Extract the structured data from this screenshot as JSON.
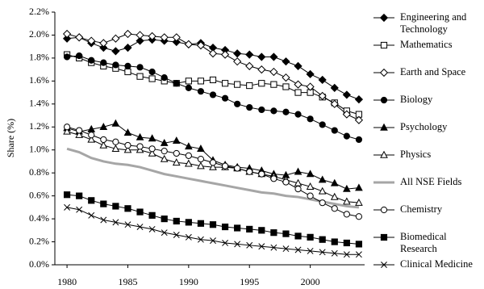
{
  "chart_data": {
    "type": "line",
    "y_label": "Share (%)",
    "x": [
      1980,
      1981,
      1982,
      1983,
      1984,
      1985,
      1986,
      1987,
      1988,
      1989,
      1990,
      1991,
      1992,
      1993,
      1994,
      1995,
      1996,
      1997,
      1998,
      1999,
      2000,
      2001,
      2002,
      2003,
      2004
    ],
    "xlim": [
      1979,
      2005
    ],
    "xticks": [
      1980,
      1985,
      1990,
      1995,
      2000
    ],
    "ylim": [
      0,
      2.2
    ],
    "yticks": [
      {
        "value": 0,
        "label": "0.0%"
      },
      {
        "value": 0.2,
        "label": "0.2%"
      },
      {
        "value": 0.4,
        "label": "0.4%"
      },
      {
        "value": 0.6,
        "label": "0.6%"
      },
      {
        "value": 0.8,
        "label": "0.8%"
      },
      {
        "value": 1.0,
        "label": "1.0%"
      },
      {
        "value": 1.2,
        "label": "1.2%"
      },
      {
        "value": 1.4,
        "label": "1.4%"
      },
      {
        "value": 1.6,
        "label": "1.6%"
      },
      {
        "value": 1.8,
        "label": "1.8%"
      },
      {
        "value": 2.0,
        "label": "2.0%"
      },
      {
        "value": 2.2,
        "label": "2.2%"
      }
    ],
    "grid": false,
    "legend": "right",
    "series": [
      {
        "name": "Engineering and Technology",
        "color": "#000000",
        "marker": "diamond-filled",
        "values": [
          1.97,
          1.98,
          1.93,
          1.89,
          1.86,
          1.89,
          1.95,
          1.96,
          1.95,
          1.94,
          1.92,
          1.93,
          1.89,
          1.87,
          1.84,
          1.83,
          1.81,
          1.81,
          1.77,
          1.73,
          1.66,
          1.61,
          1.54,
          1.48,
          1.44
        ]
      },
      {
        "name": "Mathematics",
        "color": "#000000",
        "marker": "square-open",
        "values": [
          1.83,
          1.8,
          1.76,
          1.73,
          1.71,
          1.68,
          1.64,
          1.62,
          1.6,
          1.58,
          1.6,
          1.6,
          1.61,
          1.58,
          1.57,
          1.56,
          1.58,
          1.57,
          1.55,
          1.5,
          1.5,
          1.46,
          1.41,
          1.34,
          1.31
        ]
      },
      {
        "name": "Earth and Space",
        "color": "#000000",
        "marker": "diamond-open",
        "values": [
          2.01,
          1.98,
          1.95,
          1.93,
          1.97,
          2.01,
          2.0,
          1.99,
          1.98,
          1.98,
          1.92,
          1.91,
          1.84,
          1.83,
          1.77,
          1.73,
          1.7,
          1.68,
          1.63,
          1.57,
          1.55,
          1.47,
          1.4,
          1.31,
          1.26
        ]
      },
      {
        "name": "Biology",
        "color": "#000000",
        "marker": "circle-filled",
        "values": [
          1.81,
          1.82,
          1.78,
          1.76,
          1.74,
          1.73,
          1.72,
          1.68,
          1.63,
          1.58,
          1.54,
          1.51,
          1.48,
          1.45,
          1.4,
          1.37,
          1.35,
          1.34,
          1.33,
          1.31,
          1.27,
          1.22,
          1.17,
          1.12,
          1.09
        ]
      },
      {
        "name": "Psychology",
        "color": "#000000",
        "marker": "triangle-filled",
        "values": [
          1.19,
          1.16,
          1.18,
          1.2,
          1.23,
          1.15,
          1.11,
          1.1,
          1.06,
          1.08,
          1.03,
          1.01,
          0.91,
          0.87,
          0.85,
          0.84,
          0.82,
          0.79,
          0.78,
          0.81,
          0.79,
          0.74,
          0.71,
          0.66,
          0.67
        ]
      },
      {
        "name": "Physics",
        "color": "#000000",
        "marker": "triangle-open",
        "values": [
          1.16,
          1.13,
          1.09,
          1.04,
          1.01,
          1.0,
          1.0,
          0.97,
          0.92,
          0.89,
          0.88,
          0.86,
          0.85,
          0.85,
          0.84,
          0.81,
          0.79,
          0.77,
          0.74,
          0.71,
          0.68,
          0.64,
          0.59,
          0.55,
          0.54
        ]
      },
      {
        "name": "All NSE Fields",
        "color": "#a6a6a6",
        "marker": "none",
        "values": [
          1.01,
          0.98,
          0.93,
          0.9,
          0.88,
          0.87,
          0.85,
          0.82,
          0.79,
          0.77,
          0.75,
          0.73,
          0.71,
          0.69,
          0.67,
          0.65,
          0.63,
          0.62,
          0.6,
          0.59,
          0.57,
          0.55,
          0.53,
          0.51,
          0.5
        ]
      },
      {
        "name": "Chemistry",
        "color": "#000000",
        "marker": "circle-open",
        "values": [
          1.2,
          1.17,
          1.13,
          1.09,
          1.07,
          1.04,
          1.03,
          1.01,
          0.99,
          0.97,
          0.95,
          0.92,
          0.89,
          0.86,
          0.84,
          0.81,
          0.79,
          0.75,
          0.72,
          0.66,
          0.6,
          0.54,
          0.49,
          0.44,
          0.42
        ]
      },
      {
        "name": "Biomedical Research",
        "color": "#000000",
        "marker": "square-filled",
        "values": [
          0.61,
          0.6,
          0.56,
          0.53,
          0.51,
          0.49,
          0.46,
          0.43,
          0.4,
          0.38,
          0.37,
          0.36,
          0.35,
          0.33,
          0.32,
          0.31,
          0.3,
          0.28,
          0.27,
          0.25,
          0.24,
          0.22,
          0.2,
          0.19,
          0.18
        ]
      },
      {
        "name": "Clinical Medicine",
        "color": "#000000",
        "marker": "x",
        "values": [
          0.5,
          0.48,
          0.43,
          0.39,
          0.37,
          0.35,
          0.33,
          0.31,
          0.28,
          0.26,
          0.24,
          0.22,
          0.21,
          0.19,
          0.18,
          0.17,
          0.16,
          0.15,
          0.14,
          0.13,
          0.12,
          0.11,
          0.1,
          0.09,
          0.09
        ]
      }
    ]
  }
}
